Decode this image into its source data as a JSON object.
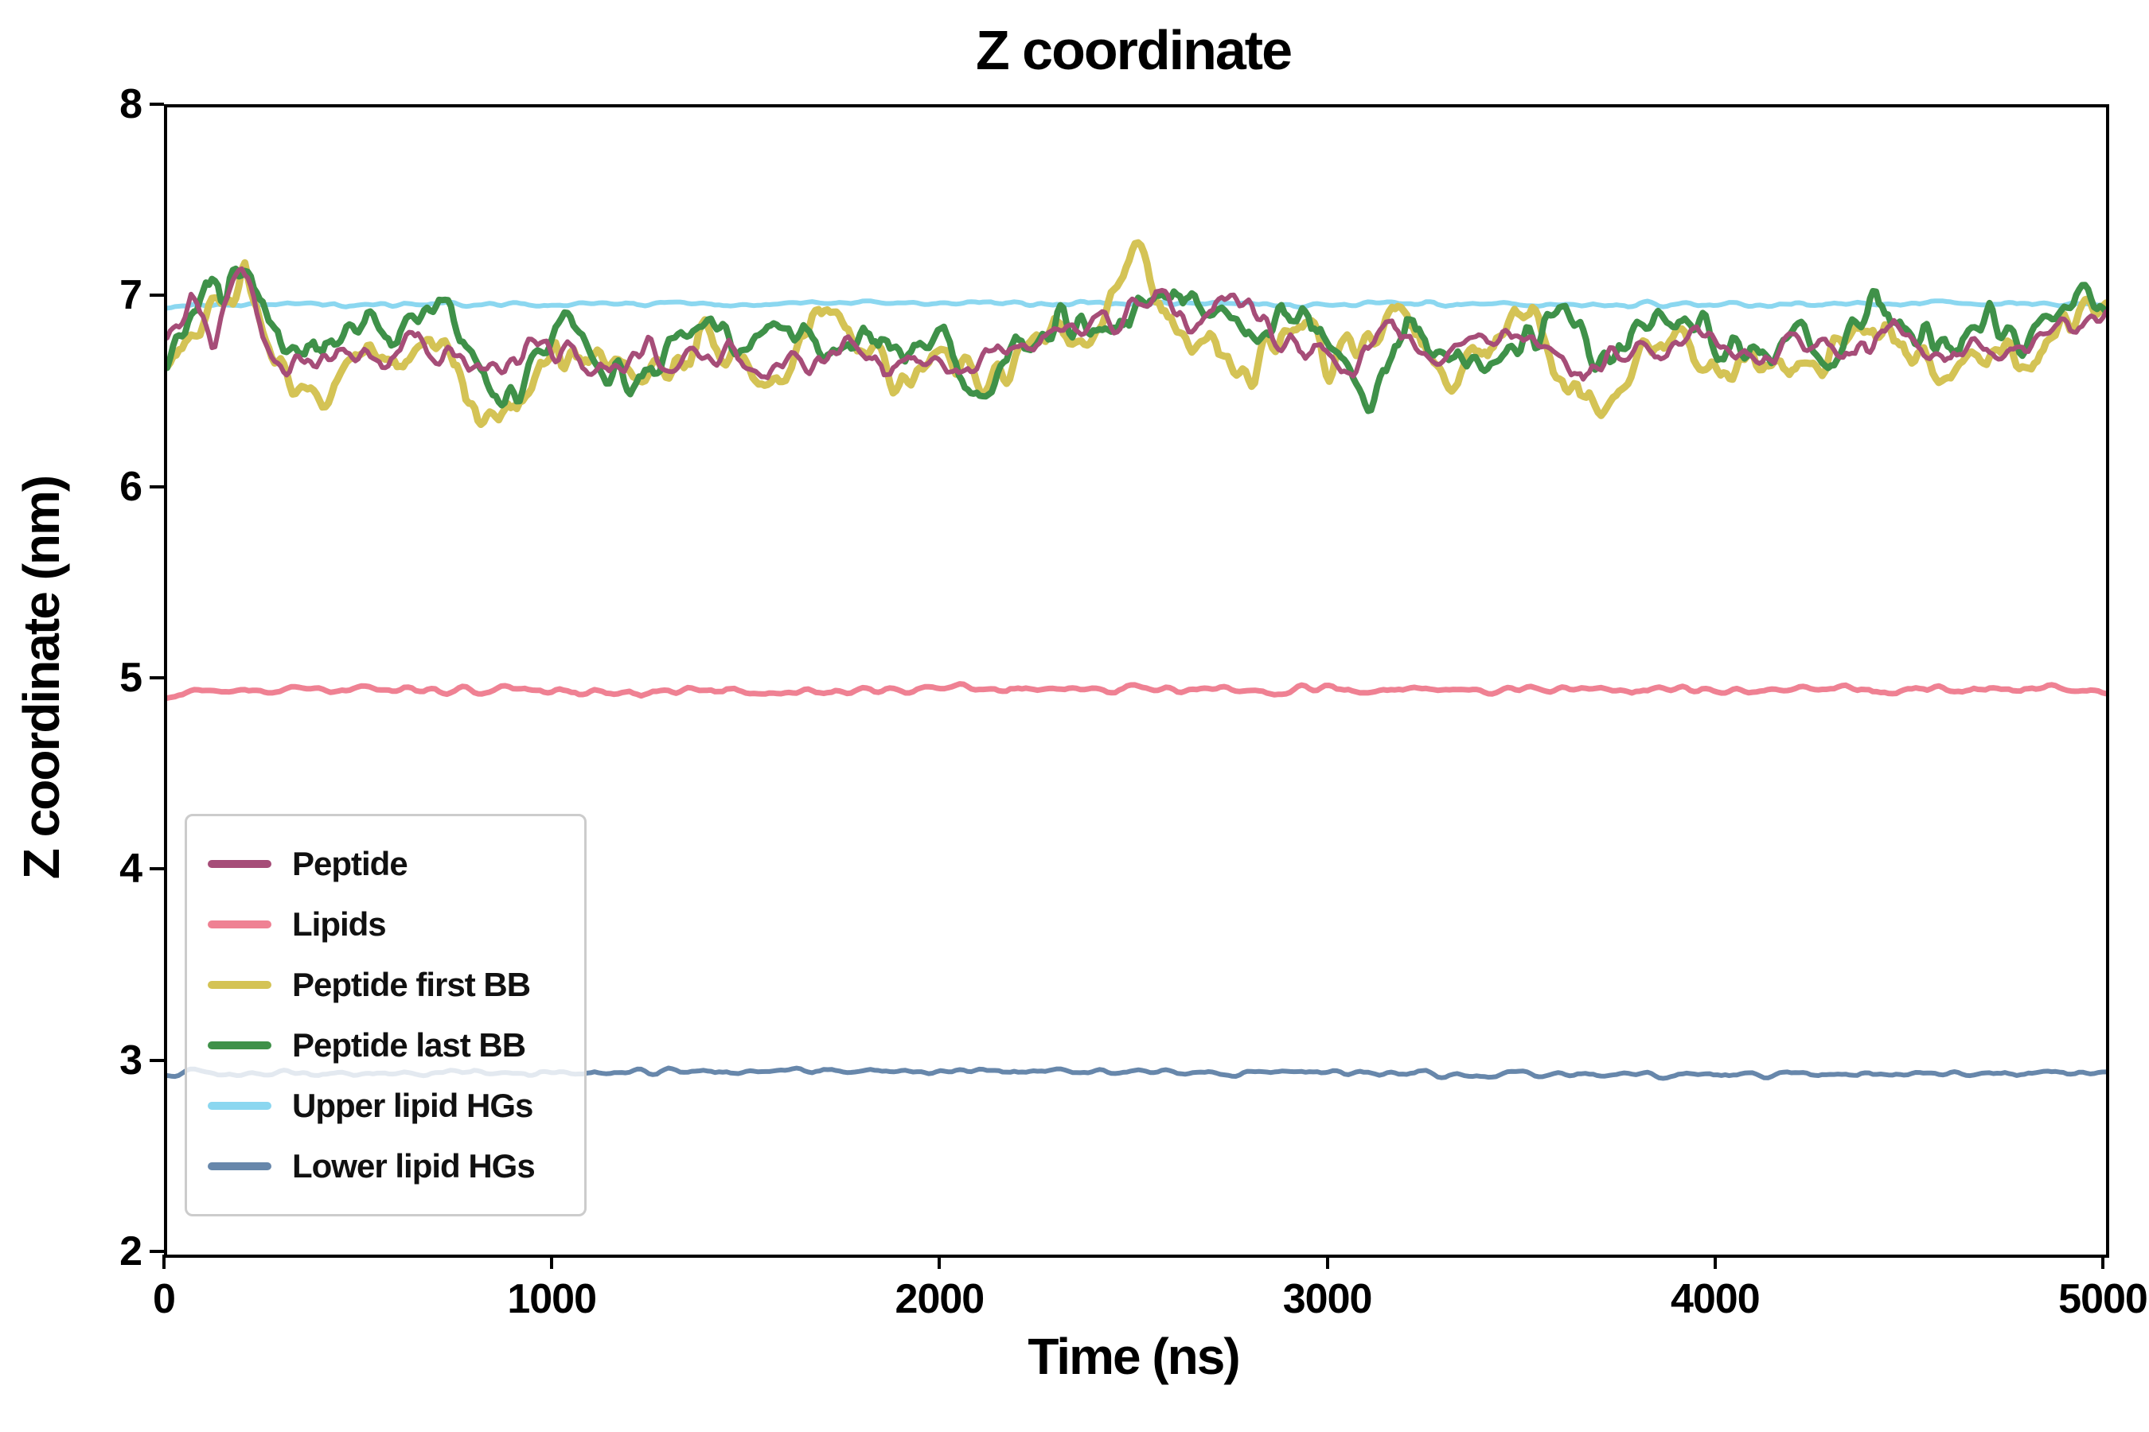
{
  "chart_data": {
    "type": "line",
    "title": "Z coordinate",
    "xlabel": "Time (ns)",
    "ylabel": "Z coordinate (nm)",
    "xlim": [
      0,
      5000
    ],
    "ylim": [
      2,
      8
    ],
    "xticks": [
      0,
      1000,
      2000,
      3000,
      4000,
      5000
    ],
    "yticks": [
      2,
      3,
      4,
      5,
      6,
      7,
      8
    ],
    "grid": false,
    "legend": {
      "position": "lower left",
      "items": [
        "Peptide",
        "Lipids",
        "Peptide first BB",
        "Peptide last BB",
        "Upper lipid HGs",
        "Lower lipid HGs"
      ]
    },
    "colors": {
      "axis": "#000000",
      "background": "#ffffff",
      "legend_border": "#cccccc"
    },
    "series": [
      {
        "name": "Peptide",
        "color": "#a64d78",
        "linewidth": 6,
        "zorder": 6,
        "jitter": 0.05,
        "points": 650,
        "mean": 6.75,
        "range": [
          6.5,
          7.25
        ],
        "keypoints": [
          [
            0,
            6.72
          ],
          [
            60,
            7.02
          ],
          [
            120,
            6.78
          ],
          [
            190,
            7.24
          ],
          [
            250,
            6.72
          ],
          [
            350,
            6.65
          ],
          [
            450,
            6.72
          ],
          [
            550,
            6.68
          ],
          [
            650,
            6.82
          ],
          [
            750,
            6.66
          ],
          [
            850,
            6.6
          ],
          [
            950,
            6.76
          ],
          [
            1050,
            6.7
          ],
          [
            1150,
            6.62
          ],
          [
            1250,
            6.72
          ],
          [
            1350,
            6.66
          ],
          [
            1450,
            6.76
          ],
          [
            1550,
            6.6
          ],
          [
            1650,
            6.7
          ],
          [
            1750,
            6.76
          ],
          [
            1850,
            6.64
          ],
          [
            1950,
            6.7
          ],
          [
            2050,
            6.6
          ],
          [
            2150,
            6.74
          ],
          [
            2250,
            6.8
          ],
          [
            2350,
            6.88
          ],
          [
            2450,
            6.84
          ],
          [
            2550,
            7.04
          ],
          [
            2650,
            6.88
          ],
          [
            2750,
            7.0
          ],
          [
            2850,
            6.8
          ],
          [
            2950,
            6.74
          ],
          [
            3050,
            6.62
          ],
          [
            3150,
            6.88
          ],
          [
            3250,
            6.7
          ],
          [
            3350,
            6.76
          ],
          [
            3450,
            6.8
          ],
          [
            3550,
            6.7
          ],
          [
            3650,
            6.62
          ],
          [
            3750,
            6.76
          ],
          [
            3850,
            6.7
          ],
          [
            3950,
            6.8
          ],
          [
            4050,
            6.66
          ],
          [
            4150,
            6.7
          ],
          [
            4250,
            6.76
          ],
          [
            4350,
            6.7
          ],
          [
            4450,
            6.84
          ],
          [
            4550,
            6.7
          ],
          [
            4650,
            6.76
          ],
          [
            4750,
            6.7
          ],
          [
            4850,
            6.8
          ],
          [
            4950,
            6.84
          ],
          [
            5000,
            6.9
          ]
        ]
      },
      {
        "name": "Lipids",
        "color": "#ef8193",
        "linewidth": 7,
        "zorder": 3,
        "jitter": 0.015,
        "points": 500,
        "mean": 4.95,
        "range": [
          4.9,
          5.0
        ],
        "keypoints": [
          [
            0,
            4.93
          ],
          [
            500,
            4.96
          ],
          [
            1000,
            4.95
          ],
          [
            1500,
            4.94
          ],
          [
            2000,
            4.96
          ],
          [
            2500,
            4.95
          ],
          [
            3000,
            4.96
          ],
          [
            3500,
            4.95
          ],
          [
            4000,
            4.95
          ],
          [
            4500,
            4.96
          ],
          [
            5000,
            4.95
          ]
        ]
      },
      {
        "name": "Peptide first BB",
        "color": "#d4c355",
        "linewidth": 9,
        "zorder": 4,
        "jitter": 0.07,
        "points": 650,
        "mean": 6.72,
        "range": [
          6.3,
          7.3
        ],
        "keypoints": [
          [
            0,
            6.68
          ],
          [
            100,
            6.9
          ],
          [
            200,
            7.1
          ],
          [
            300,
            6.6
          ],
          [
            400,
            6.5
          ],
          [
            500,
            6.76
          ],
          [
            600,
            6.64
          ],
          [
            700,
            6.8
          ],
          [
            800,
            6.36
          ],
          [
            900,
            6.42
          ],
          [
            1000,
            6.76
          ],
          [
            1100,
            6.6
          ],
          [
            1200,
            6.7
          ],
          [
            1300,
            6.56
          ],
          [
            1400,
            6.8
          ],
          [
            1500,
            6.6
          ],
          [
            1600,
            6.54
          ],
          [
            1700,
            7.0
          ],
          [
            1800,
            6.7
          ],
          [
            1900,
            6.6
          ],
          [
            2000,
            6.64
          ],
          [
            2100,
            6.56
          ],
          [
            2200,
            6.7
          ],
          [
            2300,
            6.8
          ],
          [
            2400,
            6.9
          ],
          [
            2500,
            7.28
          ],
          [
            2600,
            6.8
          ],
          [
            2700,
            6.7
          ],
          [
            2800,
            6.62
          ],
          [
            2900,
            6.9
          ],
          [
            3000,
            6.7
          ],
          [
            3100,
            6.8
          ],
          [
            3200,
            6.9
          ],
          [
            3300,
            6.6
          ],
          [
            3400,
            6.7
          ],
          [
            3500,
            7.0
          ],
          [
            3600,
            6.6
          ],
          [
            3700,
            6.42
          ],
          [
            3800,
            6.7
          ],
          [
            3900,
            6.8
          ],
          [
            4000,
            6.6
          ],
          [
            4100,
            6.7
          ],
          [
            4200,
            6.64
          ],
          [
            4300,
            6.7
          ],
          [
            4400,
            6.9
          ],
          [
            4500,
            6.7
          ],
          [
            4600,
            6.6
          ],
          [
            4700,
            6.7
          ],
          [
            4800,
            6.64
          ],
          [
            4900,
            6.9
          ],
          [
            5000,
            7.0
          ]
        ]
      },
      {
        "name": "Peptide last BB",
        "color": "#3f9149",
        "linewidth": 8,
        "zorder": 5,
        "jitter": 0.065,
        "points": 650,
        "mean": 6.8,
        "range": [
          6.4,
          7.15
        ],
        "keypoints": [
          [
            0,
            6.62
          ],
          [
            100,
            7.0
          ],
          [
            200,
            7.12
          ],
          [
            300,
            6.8
          ],
          [
            400,
            6.72
          ],
          [
            500,
            6.9
          ],
          [
            600,
            6.8
          ],
          [
            700,
            7.04
          ],
          [
            800,
            6.6
          ],
          [
            900,
            6.52
          ],
          [
            1000,
            6.9
          ],
          [
            1100,
            6.76
          ],
          [
            1200,
            6.52
          ],
          [
            1300,
            6.8
          ],
          [
            1400,
            6.9
          ],
          [
            1500,
            6.7
          ],
          [
            1600,
            6.9
          ],
          [
            1700,
            6.76
          ],
          [
            1800,
            6.8
          ],
          [
            1900,
            6.7
          ],
          [
            2000,
            6.76
          ],
          [
            2100,
            6.46
          ],
          [
            2200,
            6.8
          ],
          [
            2300,
            6.9
          ],
          [
            2400,
            6.8
          ],
          [
            2500,
            6.9
          ],
          [
            2600,
            7.0
          ],
          [
            2700,
            6.9
          ],
          [
            2800,
            6.8
          ],
          [
            2900,
            6.94
          ],
          [
            3000,
            6.8
          ],
          [
            3100,
            6.42
          ],
          [
            3200,
            6.9
          ],
          [
            3300,
            6.7
          ],
          [
            3400,
            6.6
          ],
          [
            3500,
            6.8
          ],
          [
            3600,
            6.9
          ],
          [
            3700,
            6.7
          ],
          [
            3800,
            6.8
          ],
          [
            3900,
            6.9
          ],
          [
            4000,
            6.76
          ],
          [
            4100,
            6.7
          ],
          [
            4200,
            6.8
          ],
          [
            4300,
            6.7
          ],
          [
            4400,
            7.0
          ],
          [
            4500,
            6.8
          ],
          [
            4600,
            6.72
          ],
          [
            4700,
            6.9
          ],
          [
            4800,
            6.76
          ],
          [
            4900,
            7.0
          ],
          [
            5000,
            6.94
          ]
        ]
      },
      {
        "name": "Upper lipid HGs",
        "color": "#8bd7f0",
        "linewidth": 6,
        "zorder": 1,
        "jitter": 0.01,
        "points": 500,
        "mean": 6.97,
        "range": [
          6.93,
          7.0
        ],
        "keypoints": [
          [
            0,
            6.97
          ],
          [
            1000,
            6.97
          ],
          [
            2000,
            6.98
          ],
          [
            3000,
            6.97
          ],
          [
            4000,
            6.97
          ],
          [
            5000,
            6.97
          ]
        ]
      },
      {
        "name": "Lower lipid HGs",
        "color": "#6787ab",
        "linewidth": 6,
        "zorder": 2,
        "jitter": 0.012,
        "points": 500,
        "mean": 2.95,
        "range": [
          2.9,
          3.0
        ],
        "keypoints": [
          [
            0,
            2.95
          ],
          [
            1000,
            2.95
          ],
          [
            2000,
            2.96
          ],
          [
            3000,
            2.95
          ],
          [
            4000,
            2.94
          ],
          [
            5000,
            2.95
          ]
        ]
      }
    ]
  }
}
